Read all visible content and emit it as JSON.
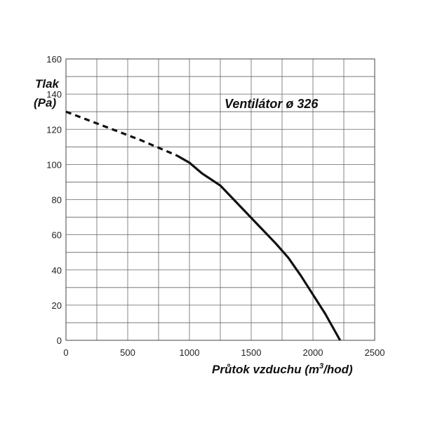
{
  "chart_data": {
    "type": "line",
    "title": "Ventilátor ø 326",
    "ylabel_line1": "Tlak",
    "ylabel_line2": "(Pa)",
    "xlabel_main": "Průtok vzduchu (m",
    "xlabel_sup": "3",
    "xlabel_end": "/hod)",
    "xlim": [
      0,
      2500
    ],
    "ylim": [
      0,
      160
    ],
    "x_ticks": [
      0,
      500,
      1000,
      1500,
      2000,
      2500
    ],
    "y_ticks": [
      0,
      20,
      40,
      60,
      80,
      100,
      120,
      140,
      160
    ],
    "grid": true,
    "series": [
      {
        "style": "dashed",
        "x": [
          0,
          300,
          600,
          900
        ],
        "y": [
          130,
          122,
          114,
          105
        ]
      },
      {
        "style": "solid",
        "x": [
          900,
          1000,
          1100,
          1250,
          1400,
          1550,
          1700,
          1800,
          1900,
          2000,
          2100,
          2220
        ],
        "y": [
          105,
          101,
          95,
          88,
          77,
          66,
          55,
          47,
          37,
          26,
          15,
          0
        ]
      }
    ],
    "line_color": "#111111",
    "grid_color": "#666666"
  }
}
